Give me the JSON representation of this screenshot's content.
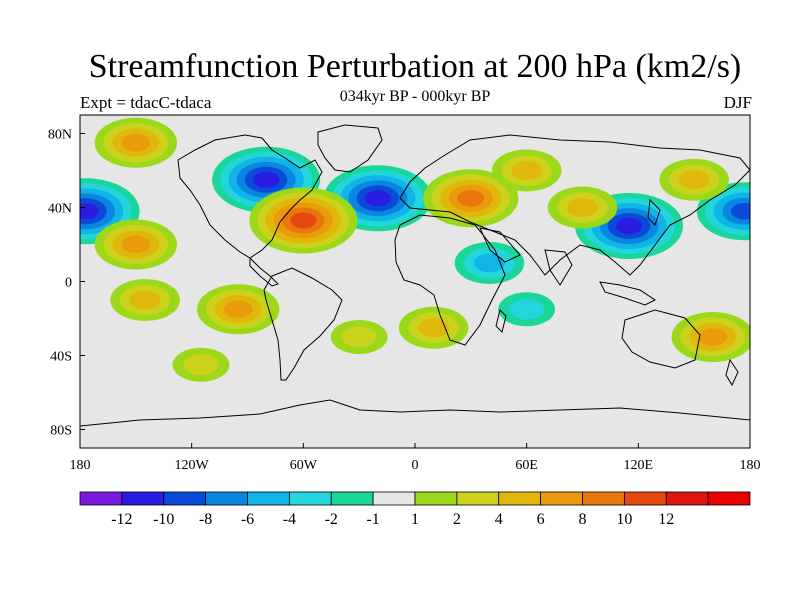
{
  "title": "Streamfunction Perturbation at 200 hPa (km2/s)",
  "subtitle": "034kyr BP - 000kyr BP",
  "left_label": "Expt = tdacC-tdaca",
  "right_label": "DJF",
  "map": {
    "lat_ticks": [
      "80N",
      "40N",
      "0",
      "40S",
      "80S"
    ],
    "lon_ticks": [
      "180",
      "120W",
      "60W",
      "0",
      "60E",
      "120E",
      "180"
    ]
  },
  "colorbar": {
    "colors": [
      "#7a1be2",
      "#2a1be0",
      "#0a4ad8",
      "#0a86e0",
      "#11b4e6",
      "#22d6dc",
      "#1ad69a",
      "#e6e6e6",
      "#9cd81a",
      "#ccd11c",
      "#e0b70b",
      "#ea9b0b",
      "#e8760b",
      "#e6480e",
      "#e01212",
      "#ea0000"
    ],
    "labels": [
      "-12",
      "-10",
      "-8",
      "-6",
      "-4",
      "-2",
      "-1",
      "1",
      "2",
      "4",
      "6",
      "8",
      "10",
      "12"
    ]
  },
  "anomalies": [
    {
      "lon": -80,
      "lat": 55,
      "value": -10
    },
    {
      "lon": -20,
      "lat": 45,
      "value": -10
    },
    {
      "lon": -60,
      "lat": 33,
      "value": 10
    },
    {
      "lon": 30,
      "lat": 45,
      "value": 8
    },
    {
      "lon": 115,
      "lat": 30,
      "value": -10
    },
    {
      "lon": -177,
      "lat": 38,
      "value": -10
    },
    {
      "lon": 177,
      "lat": 38,
      "value": -8
    },
    {
      "lon": -150,
      "lat": 20,
      "value": 6
    },
    {
      "lon": -150,
      "lat": 75,
      "value": 6
    },
    {
      "lon": -145,
      "lat": -10,
      "value": 4
    },
    {
      "lon": -95,
      "lat": -15,
      "value": 6
    },
    {
      "lon": 90,
      "lat": 40,
      "value": 4
    },
    {
      "lon": 60,
      "lat": 60,
      "value": 4
    },
    {
      "lon": 150,
      "lat": 55,
      "value": 4
    },
    {
      "lon": 160,
      "lat": -30,
      "value": 6
    },
    {
      "lon": -115,
      "lat": -45,
      "value": 2
    },
    {
      "lon": 40,
      "lat": 10,
      "value": -4
    },
    {
      "lon": 60,
      "lat": -15,
      "value": -2
    },
    {
      "lon": -30,
      "lat": -30,
      "value": 2
    },
    {
      "lon": 10,
      "lat": -25,
      "value": 4
    }
  ]
}
